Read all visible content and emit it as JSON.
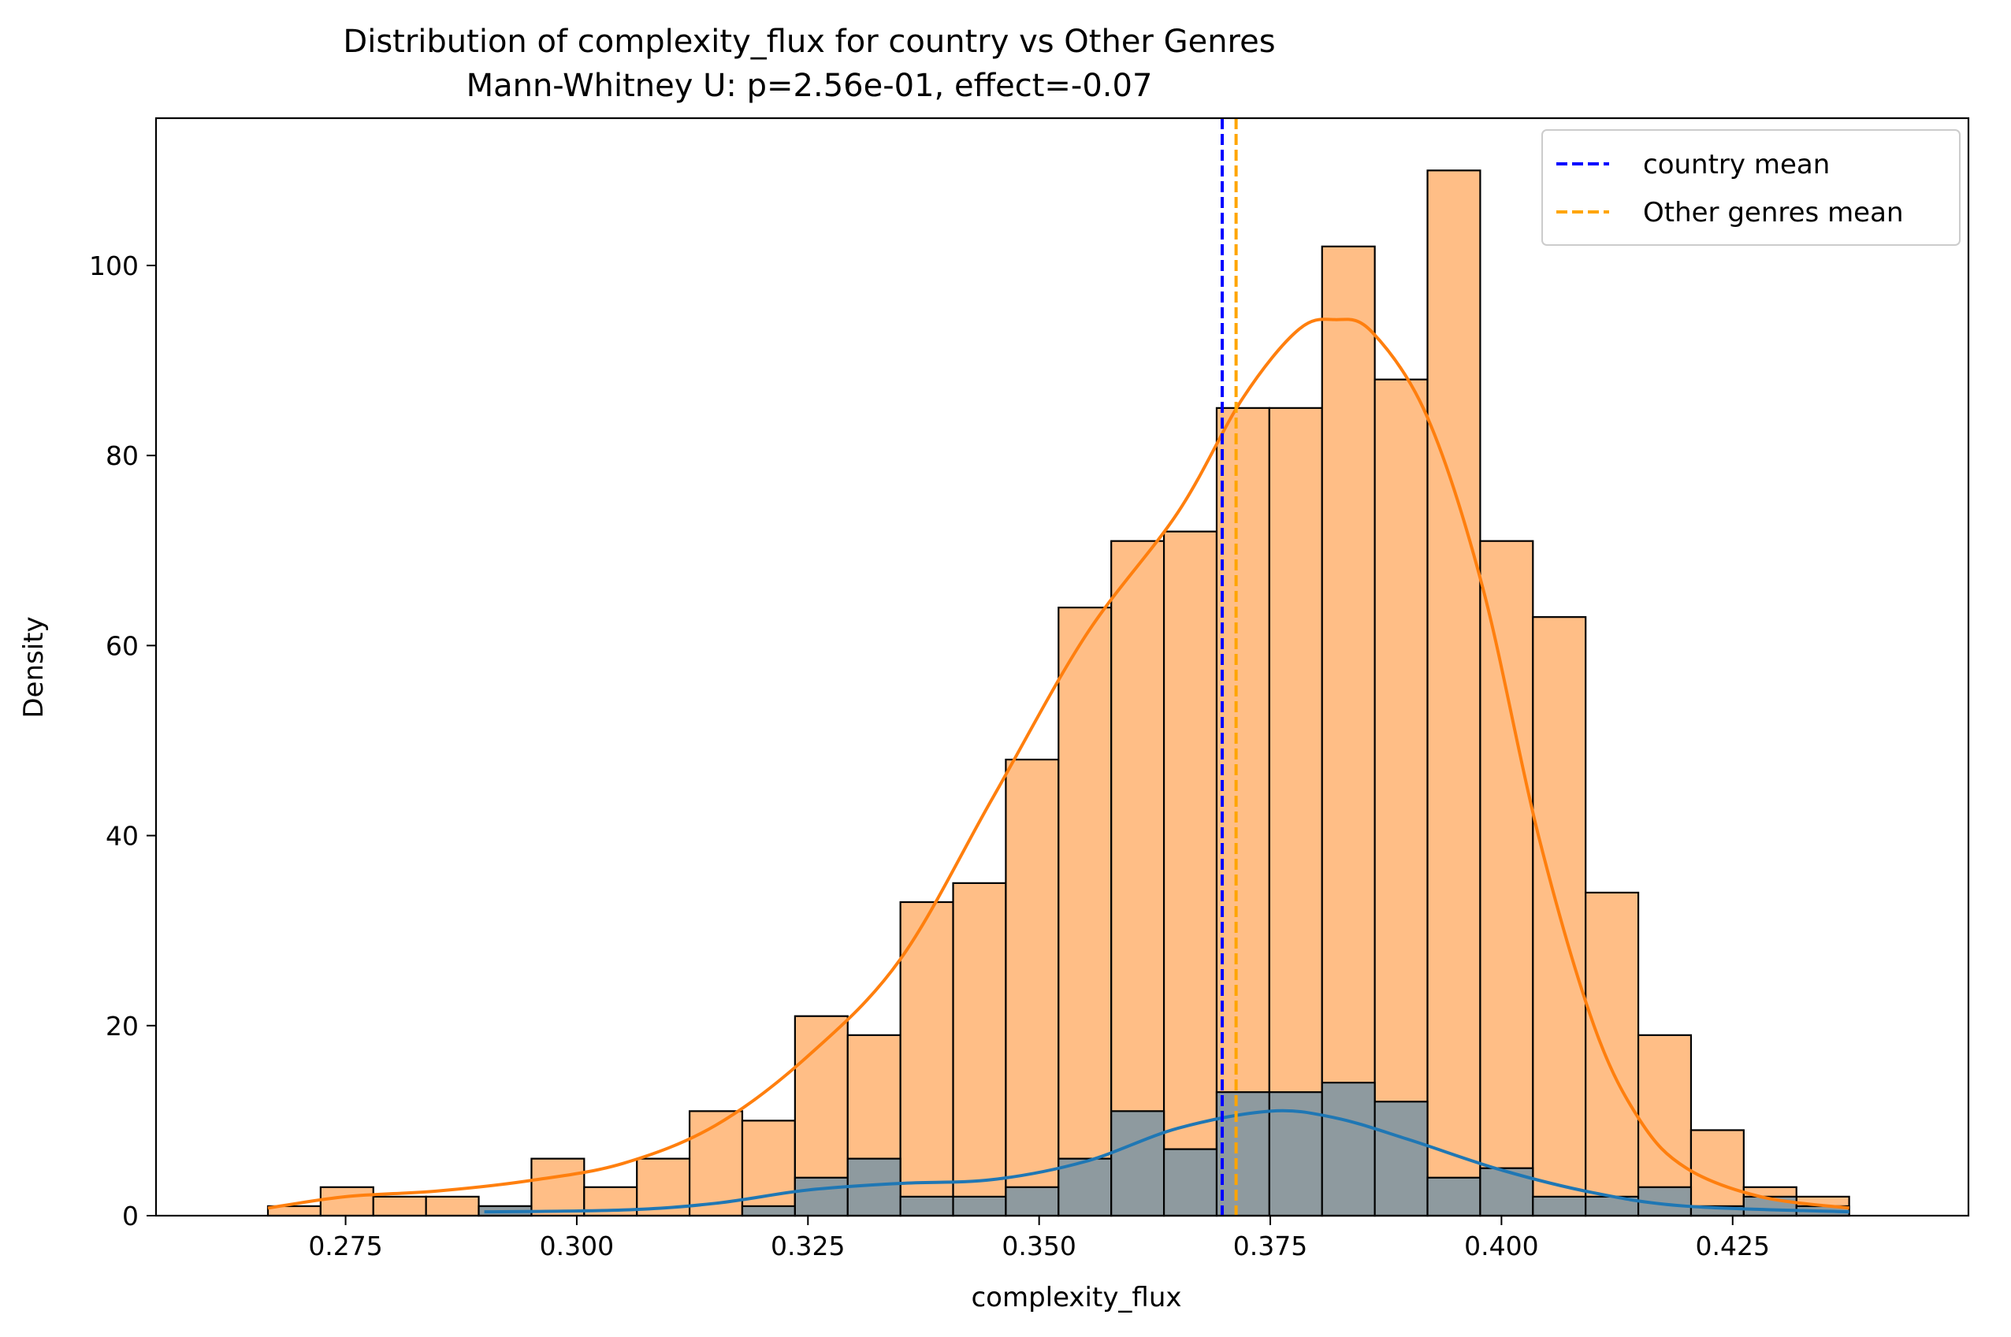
{
  "chart_data": {
    "type": "bar",
    "title": "Distribution of complexity_flux for country vs Other Genres",
    "subtitle": "Mann-Whitney U: p=2.56e-01, effect=-0.07",
    "xlabel": "complexity_flux",
    "ylabel": "Density",
    "xlim": [
      0.2545,
      0.4505
    ],
    "ylim": [
      0,
      115.5
    ],
    "xticks": [
      0.275,
      0.3,
      0.325,
      0.35,
      0.375,
      0.4,
      0.425
    ],
    "xtick_labels": [
      "0.275",
      "0.300",
      "0.325",
      "0.350",
      "0.375",
      "0.400",
      "0.425"
    ],
    "yticks": [
      0,
      20,
      40,
      60,
      80,
      100
    ],
    "ytick_labels": [
      "0",
      "20",
      "40",
      "60",
      "80",
      "100"
    ],
    "grid": false,
    "legend_position": "top-right",
    "bin_edges": [
      0.2666,
      0.2723,
      0.278,
      0.2837,
      0.2894,
      0.2951,
      0.3008,
      0.3065,
      0.3122,
      0.3179,
      0.3236,
      0.3293,
      0.335,
      0.3407,
      0.3464,
      0.3521,
      0.3578,
      0.3635,
      0.3692,
      0.3749,
      0.3806,
      0.3863,
      0.392,
      0.3977,
      0.4034,
      0.4091,
      0.4148,
      0.4205,
      0.4262,
      0.4319,
      0.4376
    ],
    "series": [
      {
        "name": "",
        "color": "#ffbe86",
        "edge_color": "#000000",
        "values": [
          1,
          3,
          2,
          2,
          1,
          6,
          3,
          6,
          11,
          10,
          21,
          19,
          33,
          35,
          48,
          64,
          71,
          72,
          85,
          85,
          102,
          88,
          110,
          71,
          63,
          34,
          19,
          9,
          3,
          2
        ]
      },
      {
        "name": "",
        "color": "#8e9a9f",
        "edge_color": "#000000",
        "values": [
          0,
          0,
          0,
          0,
          1,
          0,
          0,
          0,
          0,
          1,
          4,
          6,
          2,
          2,
          3,
          6,
          11,
          7,
          13,
          13,
          14,
          12,
          4,
          5,
          2,
          2,
          3,
          1,
          2,
          1
        ]
      }
    ],
    "kde": [
      {
        "color": "#ff7f0e",
        "points": [
          [
            0.2666,
            0.8
          ],
          [
            0.275,
            2.0
          ],
          [
            0.285,
            2.6
          ],
          [
            0.295,
            3.7
          ],
          [
            0.305,
            5.5
          ],
          [
            0.315,
            9.5
          ],
          [
            0.325,
            16.8
          ],
          [
            0.335,
            27.0
          ],
          [
            0.345,
            44.0
          ],
          [
            0.355,
            61.0
          ],
          [
            0.365,
            74.0
          ],
          [
            0.372,
            86.0
          ],
          [
            0.378,
            93.2
          ],
          [
            0.382,
            94.3
          ],
          [
            0.386,
            93.0
          ],
          [
            0.392,
            84.0
          ],
          [
            0.398,
            66.0
          ],
          [
            0.404,
            40.0
          ],
          [
            0.41,
            20.0
          ],
          [
            0.415,
            10.0
          ],
          [
            0.42,
            5.0
          ],
          [
            0.428,
            2.0
          ],
          [
            0.4376,
            0.8
          ]
        ]
      },
      {
        "color": "#1f77b4",
        "points": [
          [
            0.29,
            0.4
          ],
          [
            0.305,
            0.6
          ],
          [
            0.315,
            1.3
          ],
          [
            0.325,
            2.7
          ],
          [
            0.335,
            3.4
          ],
          [
            0.345,
            3.8
          ],
          [
            0.355,
            5.7
          ],
          [
            0.365,
            9.2
          ],
          [
            0.375,
            11.0
          ],
          [
            0.382,
            10.3
          ],
          [
            0.39,
            8.0
          ],
          [
            0.4,
            4.8
          ],
          [
            0.41,
            2.4
          ],
          [
            0.42,
            1.0
          ],
          [
            0.4376,
            0.4
          ]
        ]
      }
    ],
    "mean_lines": [
      {
        "label": "country mean",
        "x": 0.3698,
        "color": "#0000ff"
      },
      {
        "label": "Other genres mean",
        "x": 0.3713,
        "color": "#ffa500"
      }
    ]
  }
}
